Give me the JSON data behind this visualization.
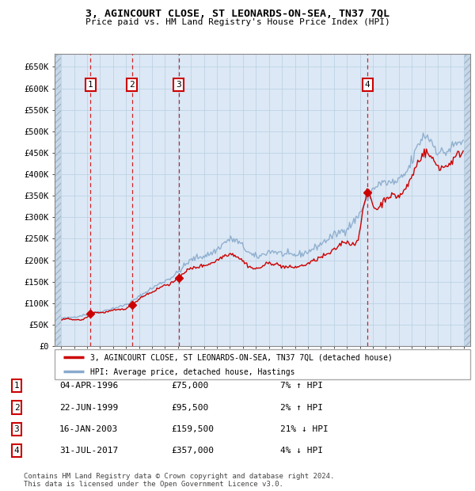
{
  "title": "3, AGINCOURT CLOSE, ST LEONARDS-ON-SEA, TN37 7QL",
  "subtitle": "Price paid vs. HM Land Registry's House Price Index (HPI)",
  "legend_property": "3, AGINCOURT CLOSE, ST LEONARDS-ON-SEA, TN37 7QL (detached house)",
  "legend_hpi": "HPI: Average price, detached house, Hastings",
  "footer1": "Contains HM Land Registry data © Crown copyright and database right 2024.",
  "footer2": "This data is licensed under the Open Government Licence v3.0.",
  "sales": [
    {
      "num": 1,
      "date_label": "04-APR-1996",
      "price": 75000,
      "pct": "7%",
      "dir": "↑",
      "x_year": 1996.25
    },
    {
      "num": 2,
      "date_label": "22-JUN-1999",
      "price": 95500,
      "pct": "2%",
      "dir": "↑",
      "x_year": 1999.47
    },
    {
      "num": 3,
      "date_label": "16-JAN-2003",
      "price": 159500,
      "pct": "21%",
      "dir": "↓",
      "x_year": 2003.04
    },
    {
      "num": 4,
      "date_label": "31-JUL-2017",
      "price": 357000,
      "pct": "4%",
      "dir": "↓",
      "x_year": 2017.58
    }
  ],
  "ylim": [
    0,
    680000
  ],
  "xlim_start": 1993.5,
  "xlim_end": 2025.5,
  "yticks": [
    0,
    50000,
    100000,
    150000,
    200000,
    250000,
    300000,
    350000,
    400000,
    450000,
    500000,
    550000,
    600000,
    650000
  ],
  "ytick_labels": [
    "£0",
    "£50K",
    "£100K",
    "£150K",
    "£200K",
    "£250K",
    "£300K",
    "£350K",
    "£400K",
    "£450K",
    "£500K",
    "£550K",
    "£600K",
    "£650K"
  ],
  "bg_color": "#dce8f5",
  "grid_color": "#b8cfe0",
  "property_line_color": "#cc0000",
  "hpi_line_color": "#88aacc",
  "marker_color": "#cc0000",
  "sale_vline_color": "#cc0000",
  "hatch_bg_color": "#c8d8e8"
}
